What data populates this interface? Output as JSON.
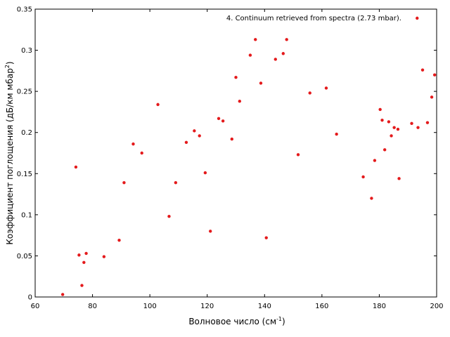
{
  "chart_data": {
    "type": "scatter",
    "title": "",
    "xlabel_main": "Волновое число (см",
    "xlabel_sup": "-1",
    "xlabel_end": ")",
    "ylabel_main": "Коэффициент поглощения (дБ/км мбар",
    "ylabel_sup": "2",
    "ylabel_end": ")",
    "xlim": [
      60,
      200
    ],
    "ylim": [
      0,
      0.35
    ],
    "grid": false,
    "legend_position": "top-right",
    "xticks": [
      "60",
      "80",
      "100",
      "120",
      "140",
      "160",
      "180",
      "200"
    ],
    "yticks": [
      "0",
      "0.05",
      "0.1",
      "0.15",
      "0.2",
      "0.25",
      "0.3",
      "0.35"
    ],
    "series": [
      {
        "name": "4. Continuum retrieved from spectra (2.73 mbar).",
        "color": "#e41a1c",
        "marker": "circle",
        "points": [
          [
            69.6,
            0.003
          ],
          [
            74.2,
            0.158
          ],
          [
            75.3,
            0.051
          ],
          [
            76.3,
            0.014
          ],
          [
            77.0,
            0.042
          ],
          [
            77.8,
            0.053
          ],
          [
            84.0,
            0.049
          ],
          [
            89.3,
            0.069
          ],
          [
            91.0,
            0.139
          ],
          [
            94.2,
            0.186
          ],
          [
            97.2,
            0.175
          ],
          [
            102.8,
            0.234
          ],
          [
            106.7,
            0.098
          ],
          [
            109.0,
            0.139
          ],
          [
            112.7,
            0.188
          ],
          [
            115.5,
            0.202
          ],
          [
            117.3,
            0.196
          ],
          [
            119.3,
            0.151
          ],
          [
            121.1,
            0.08
          ],
          [
            124.0,
            0.217
          ],
          [
            125.5,
            0.214
          ],
          [
            128.6,
            0.192
          ],
          [
            130.0,
            0.267
          ],
          [
            131.3,
            0.238
          ],
          [
            135.0,
            0.294
          ],
          [
            136.8,
            0.313
          ],
          [
            138.7,
            0.26
          ],
          [
            140.6,
            0.072
          ],
          [
            143.8,
            0.289
          ],
          [
            146.5,
            0.296
          ],
          [
            147.7,
            0.313
          ],
          [
            151.7,
            0.173
          ],
          [
            155.8,
            0.248
          ],
          [
            161.5,
            0.254
          ],
          [
            165.1,
            0.198
          ],
          [
            174.4,
            0.146
          ],
          [
            177.3,
            0.12
          ],
          [
            178.4,
            0.166
          ],
          [
            180.3,
            0.228
          ],
          [
            181.0,
            0.215
          ],
          [
            181.9,
            0.179
          ],
          [
            183.3,
            0.213
          ],
          [
            184.2,
            0.196
          ],
          [
            185.2,
            0.206
          ],
          [
            186.5,
            0.204
          ],
          [
            186.9,
            0.144
          ],
          [
            191.3,
            0.211
          ],
          [
            193.2,
            0.339
          ],
          [
            193.5,
            0.206
          ],
          [
            195.1,
            0.276
          ],
          [
            196.8,
            0.212
          ],
          [
            198.3,
            0.243
          ],
          [
            199.3,
            0.27
          ]
        ]
      }
    ]
  }
}
